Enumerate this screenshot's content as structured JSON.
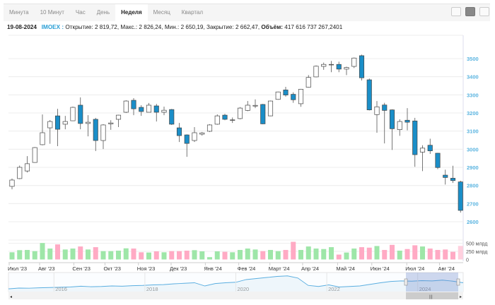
{
  "tabs": [
    {
      "label": "Минута"
    },
    {
      "label": "10 Минут"
    },
    {
      "label": "Час"
    },
    {
      "label": "День"
    },
    {
      "label": "Неделя",
      "active": true
    },
    {
      "label": "Месяц"
    },
    {
      "label": "Квартал"
    }
  ],
  "toolbar_icons": [
    "line-chart-icon",
    "candlestick-chart-icon",
    "ohlc-chart-icon"
  ],
  "info": {
    "date": "19-08-2024",
    "ticker": "IMOEX :",
    "text": " Открытие: 2 819,72, Макс.: 2 826,24, Мин.: 2 650,19, Закрытие: 2 662,47, ",
    "volume_label": "Объём:",
    "volume_value": " 417 616 737 267,2401"
  },
  "colors": {
    "up_fill": "#ffffff",
    "down_fill": "#1a8ec8",
    "vol_up": "#9ee6a8",
    "vol_down": "#ffaac4",
    "vol_current": "#ffd0de",
    "axis_label": "#5ab4e0",
    "nav_line": "#5aaee0"
  },
  "chart_data": {
    "type": "candlestick",
    "ylim": [
      2600,
      3560
    ],
    "yticks": [
      "2600",
      "2700",
      "2800",
      "2900",
      "3000",
      "3100",
      "3200",
      "3300",
      "3400",
      "3500"
    ],
    "ohlc": [
      [
        2795,
        2838,
        2779,
        2830
      ],
      [
        2838,
        2910,
        2835,
        2900
      ],
      [
        2880,
        2962,
        2872,
        2920
      ],
      [
        2927,
        3012,
        2925,
        3009
      ],
      [
        3025,
        3192,
        3022,
        3091
      ],
      [
        3118,
        3161,
        3030,
        3153
      ],
      [
        3184,
        3223,
        3017,
        3110
      ],
      [
        3138,
        3184,
        3110,
        3153
      ],
      [
        3157,
        3235,
        3155,
        3231
      ],
      [
        3243,
        3286,
        3110,
        3142
      ],
      [
        3142,
        3188,
        3071,
        3149
      ],
      [
        3165,
        3173,
        2990,
        3048
      ],
      [
        3048,
        3138,
        3001,
        3134
      ],
      [
        3140,
        3160,
        3107,
        3145
      ],
      [
        3165,
        3190,
        3122,
        3188
      ],
      [
        3204,
        3270,
        3200,
        3266
      ],
      [
        3270,
        3282,
        3188,
        3223
      ],
      [
        3231,
        3243,
        3184,
        3208
      ],
      [
        3204,
        3255,
        3204,
        3243
      ],
      [
        3239,
        3250,
        3153,
        3204
      ],
      [
        3204,
        3235,
        3188,
        3215
      ],
      [
        3219,
        3222,
        3134,
        3138
      ],
      [
        3118,
        3145,
        3040,
        3075
      ],
      [
        3079,
        3082,
        2958,
        3032
      ],
      [
        3048,
        3122,
        3040,
        3091
      ],
      [
        3083,
        3095,
        3075,
        3090
      ],
      [
        3099,
        3138,
        3095,
        3134
      ],
      [
        3138,
        3192,
        3135,
        3184
      ],
      [
        3188,
        3195,
        3160,
        3165
      ],
      [
        3160,
        3175,
        3145,
        3162
      ],
      [
        3169,
        3232,
        3165,
        3227
      ],
      [
        3214,
        3266,
        3210,
        3243
      ],
      [
        3238,
        3275,
        3227,
        3242
      ],
      [
        3247,
        3250,
        3138,
        3140
      ],
      [
        3184,
        3268,
        3182,
        3266
      ],
      [
        3275,
        3318,
        3273,
        3316
      ],
      [
        3327,
        3344,
        3290,
        3299
      ],
      [
        3303,
        3314,
        3256,
        3273
      ],
      [
        3251,
        3333,
        3234,
        3331
      ],
      [
        3342,
        3409,
        3340,
        3396
      ],
      [
        3399,
        3462,
        3397,
        3458
      ],
      [
        3457,
        3478,
        3438,
        3468
      ],
      [
        3466,
        3487,
        3425,
        3468
      ],
      [
        3468,
        3483,
        3425,
        3442
      ],
      [
        3442,
        3455,
        3409,
        3451
      ],
      [
        3457,
        3506,
        3448,
        3503
      ],
      [
        3516,
        3522,
        3379,
        3394
      ],
      [
        3383,
        3390,
        3214,
        3217
      ],
      [
        3191,
        3266,
        3091,
        3234
      ],
      [
        3244,
        3256,
        3032,
        3214
      ],
      [
        3217,
        3220,
        2996,
        3113
      ],
      [
        3108,
        3165,
        3074,
        3153
      ],
      [
        3160,
        3227,
        3104,
        3149
      ],
      [
        3156,
        3173,
        2903,
        2970
      ],
      [
        2984,
        3022,
        2879,
        3006
      ],
      [
        3022,
        3058,
        2974,
        2991
      ],
      [
        2978,
        2980,
        2890,
        2899
      ],
      [
        2857,
        2887,
        2805,
        2844
      ],
      [
        2840,
        2909,
        2814,
        2827
      ],
      [
        2819.72,
        2826.24,
        2650.19,
        2662.47
      ]
    ],
    "volume_yticks": [
      "500 млрд",
      "250 млрд",
      "0"
    ],
    "volume_ylim": [
      0,
      600
    ],
    "volumes": [
      221,
      286,
      293,
      257,
      507,
      336,
      464,
      307,
      336,
      400,
      307,
      379,
      257,
      257,
      271,
      343,
      336,
      221,
      214,
      250,
      221,
      257,
      257,
      271,
      286,
      250,
      71,
      250,
      236,
      221,
      293,
      336,
      307,
      257,
      293,
      257,
      293,
      543,
      293,
      400,
      336,
      321,
      379,
      150,
      214,
      336,
      379,
      364,
      414,
      293,
      450,
      271,
      321,
      436,
      400,
      336,
      293,
      307,
      236,
      417.6
    ],
    "months": [
      {
        "label": "Июл '23",
        "i": 0
      },
      {
        "label": "Авг '23",
        "i": 4
      },
      {
        "label": "Сен '23",
        "i": 8.5
      },
      {
        "label": "Окт '23",
        "i": 12.6
      },
      {
        "label": "Ноя '23",
        "i": 17
      },
      {
        "label": "Дек '23",
        "i": 21.3
      },
      {
        "label": "Янв '24",
        "i": 25.8
      },
      {
        "label": "Фев '24",
        "i": 30.2
      },
      {
        "label": "Март '24",
        "i": 34.3
      },
      {
        "label": "Апр '24",
        "i": 38.6
      },
      {
        "label": "Май '24",
        "i": 43.2
      },
      {
        "label": "Июн '24",
        "i": 47.7
      },
      {
        "label": "Июл '24",
        "i": 52.3
      },
      {
        "label": "Авг '24",
        "i": 56.6
      }
    ],
    "navigator": {
      "years": [
        "2016",
        "2018",
        "2020",
        "2022",
        "2024"
      ],
      "values": [
        1750,
        1900,
        1880,
        1950,
        2000,
        2050,
        2100,
        2250,
        2150,
        2200,
        2300,
        2250,
        2350,
        2400,
        2500,
        2550,
        2700,
        2800,
        2900,
        2300,
        2750,
        2900,
        3000,
        3500,
        3700,
        3900,
        4100,
        4200,
        3800,
        2400,
        2200,
        2500,
        2100,
        2200,
        2300,
        2600,
        2900,
        3150,
        3250,
        3200,
        3300,
        3250,
        3400,
        3200,
        2900
      ],
      "range": [
        2015,
        2025
      ]
    }
  }
}
